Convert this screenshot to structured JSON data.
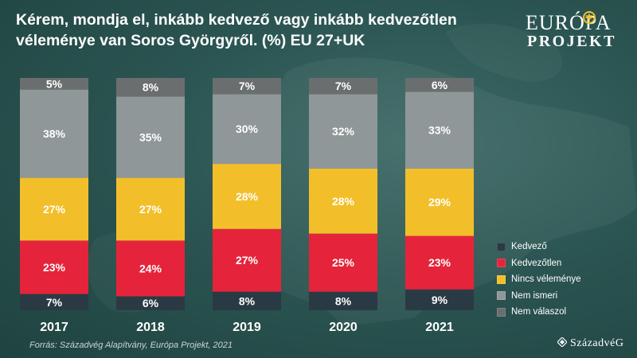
{
  "header": {
    "title": "Kérem, mondja el, inkább kedvező vagy inkább kedvezőtlen véleménye van Soros Györgyről. (%) EU 27+UK"
  },
  "logo": {
    "line1": "EURÓPA",
    "line2": "PROJEKT"
  },
  "footer": {
    "source": "Forrás: Századvég Alapítvány, Európa Projekt, 2021",
    "brand": "SzázadvéG"
  },
  "colors": {
    "Kedvező": "#2a3a44",
    "Kedvezőtlen": "#e5243b",
    "Nincs véleménye": "#f2bf2a",
    "Nem ismeri": "#8f9799",
    "Nem válaszol": "#6b6e6f"
  },
  "chart_data": {
    "type": "bar",
    "stacked": true,
    "categories": [
      "2017",
      "2018",
      "2019",
      "2020",
      "2021"
    ],
    "series": [
      {
        "name": "Kedvező",
        "values": [
          7,
          6,
          8,
          8,
          9
        ]
      },
      {
        "name": "Kedvezőtlen",
        "values": [
          23,
          24,
          27,
          25,
          23
        ]
      },
      {
        "name": "Nincs véleménye",
        "values": [
          27,
          27,
          28,
          28,
          29
        ]
      },
      {
        "name": "Nem ismeri",
        "values": [
          38,
          35,
          30,
          32,
          33
        ]
      },
      {
        "name": "Nem válaszol",
        "values": [
          5,
          8,
          7,
          7,
          6
        ]
      }
    ],
    "value_suffix": "%",
    "legend": [
      "Kedvező",
      "Kedvezőtlen",
      "Nincs véleménye",
      "Nem ismeri",
      "Nem válaszol"
    ],
    "legend_position": "right",
    "grid": false
  }
}
